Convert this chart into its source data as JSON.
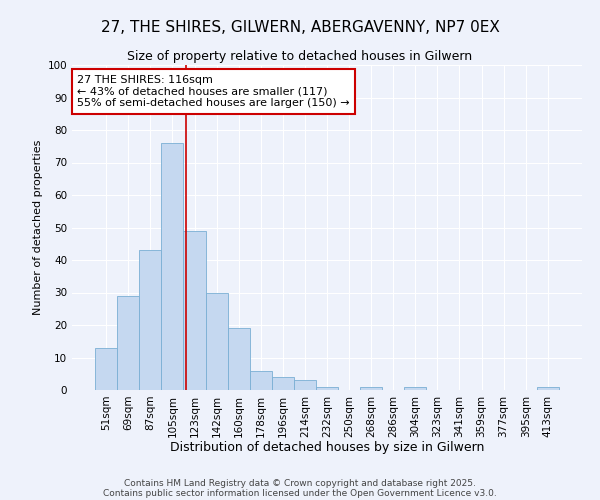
{
  "title_line1": "27, THE SHIRES, GILWERN, ABERGAVENNY, NP7 0EX",
  "title_line2": "Size of property relative to detached houses in Gilwern",
  "xlabel": "Distribution of detached houses by size in Gilwern",
  "ylabel": "Number of detached properties",
  "bar_color": "#c5d8f0",
  "bar_edge_color": "#7aafd4",
  "bg_color": "#eef2fb",
  "plot_bg_color": "#eef2fb",
  "grid_color": "#ffffff",
  "categories": [
    "51sqm",
    "69sqm",
    "87sqm",
    "105sqm",
    "123sqm",
    "142sqm",
    "160sqm",
    "178sqm",
    "196sqm",
    "214sqm",
    "232sqm",
    "250sqm",
    "268sqm",
    "286sqm",
    "304sqm",
    "323sqm",
    "341sqm",
    "359sqm",
    "377sqm",
    "395sqm",
    "413sqm"
  ],
  "values": [
    13,
    29,
    43,
    76,
    49,
    30,
    19,
    6,
    4,
    3,
    1,
    0,
    1,
    0,
    1,
    0,
    0,
    0,
    0,
    0,
    1
  ],
  "red_line_x": 3.62,
  "annotation_text": "27 THE SHIRES: 116sqm\n← 43% of detached houses are smaller (117)\n55% of semi-detached houses are larger (150) →",
  "annotation_box_color": "#ffffff",
  "annotation_box_edge": "#cc0000",
  "red_line_color": "#cc0000",
  "ylim": [
    0,
    100
  ],
  "yticks": [
    0,
    10,
    20,
    30,
    40,
    50,
    60,
    70,
    80,
    90,
    100
  ],
  "footer1": "Contains HM Land Registry data © Crown copyright and database right 2025.",
  "footer2": "Contains public sector information licensed under the Open Government Licence v3.0.",
  "title1_fontsize": 11,
  "title2_fontsize": 9,
  "xlabel_fontsize": 9,
  "ylabel_fontsize": 8,
  "tick_fontsize": 7.5,
  "annot_fontsize": 8,
  "footer_fontsize": 6.5
}
